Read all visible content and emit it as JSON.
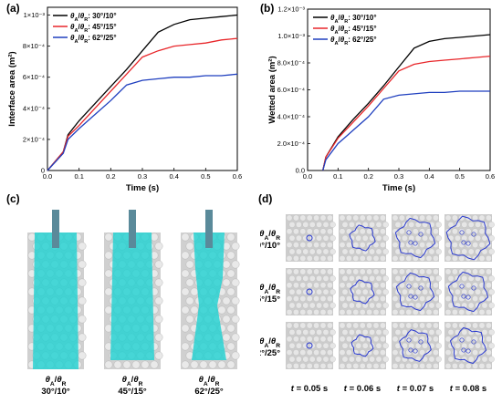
{
  "panels": {
    "a": {
      "label": "(a)"
    },
    "b": {
      "label": "(b)"
    },
    "c": {
      "label": "(c)"
    },
    "d": {
      "label": "(d)"
    }
  },
  "chart_data": [
    {
      "type": "line",
      "panel": "a",
      "ylabel": "Interface area (m²)",
      "xlabel": "Time (s)",
      "xlim": [
        0,
        0.6
      ],
      "ylim": [
        0,
        0.00105
      ],
      "xticks": [
        "0.0",
        "0.1",
        "0.2",
        "0.3",
        "0.4",
        "0.5",
        "0.6"
      ],
      "yticks": [
        "0",
        "2×10⁻⁴",
        "4×10⁻⁴",
        "6×10⁻⁴",
        "8×10⁻⁴",
        "1×10⁻³"
      ],
      "legend_position": "top-left",
      "grid": false,
      "series": [
        {
          "name": "θA/θR: 30°/10°",
          "color": "#000000",
          "x": [
            0,
            0.05,
            0.065,
            0.1,
            0.15,
            0.2,
            0.25,
            0.3,
            0.35,
            0.4,
            0.45,
            0.5,
            0.55,
            0.6
          ],
          "y": [
            0,
            0.00012,
            0.00023,
            0.00032,
            0.00043,
            0.00054,
            0.00065,
            0.00077,
            0.00089,
            0.00094,
            0.00097,
            0.00098,
            0.00099,
            0.001
          ]
        },
        {
          "name": "θA/θR: 45°/15°",
          "color": "#e8262a",
          "x": [
            0,
            0.05,
            0.065,
            0.1,
            0.15,
            0.2,
            0.25,
            0.3,
            0.35,
            0.4,
            0.45,
            0.5,
            0.55,
            0.6
          ],
          "y": [
            0,
            0.00012,
            0.00022,
            0.00029,
            0.0004,
            0.00051,
            0.00062,
            0.00073,
            0.00077,
            0.0008,
            0.00081,
            0.00082,
            0.00084,
            0.00085
          ]
        },
        {
          "name": "θA/θR: 62°/25°",
          "color": "#1f3fbf",
          "x": [
            0,
            0.05,
            0.065,
            0.1,
            0.15,
            0.2,
            0.25,
            0.3,
            0.35,
            0.4,
            0.45,
            0.5,
            0.55,
            0.6
          ],
          "y": [
            0,
            0.00011,
            0.0002,
            0.00027,
            0.00036,
            0.00045,
            0.00055,
            0.00058,
            0.00059,
            0.0006,
            0.0006,
            0.00061,
            0.00061,
            0.00062
          ]
        }
      ]
    },
    {
      "type": "line",
      "panel": "b",
      "ylabel": "Wetted area (m²)",
      "xlabel": "Time (s)",
      "xlim": [
        0,
        0.6
      ],
      "ylim": [
        0,
        0.0012
      ],
      "xticks": [
        "0.0",
        "0.1",
        "0.2",
        "0.3",
        "0.4",
        "0.5",
        "0.6"
      ],
      "yticks": [
        "0.0",
        "2.0×10⁻⁴",
        "4.0×10⁻⁴",
        "6.0×10⁻⁴",
        "8.0×10⁻⁴",
        "1.0×10⁻³",
        "1.2×10⁻³"
      ],
      "legend_position": "top-left",
      "grid": false,
      "series": [
        {
          "name": "θA/θR: 30°/10°",
          "color": "#000000",
          "x": [
            0.05,
            0.06,
            0.1,
            0.15,
            0.2,
            0.25,
            0.3,
            0.35,
            0.4,
            0.45,
            0.5,
            0.55,
            0.6
          ],
          "y": [
            0,
            0.0001,
            0.00025,
            0.00038,
            0.0005,
            0.00063,
            0.00077,
            0.00091,
            0.00096,
            0.00098,
            0.00099,
            0.001,
            0.00101
          ]
        },
        {
          "name": "θA/θR: 45°/15°",
          "color": "#e8262a",
          "x": [
            0.05,
            0.06,
            0.1,
            0.15,
            0.2,
            0.25,
            0.3,
            0.35,
            0.4,
            0.45,
            0.5,
            0.55,
            0.6
          ],
          "y": [
            0,
            0.0001,
            0.00024,
            0.00036,
            0.00048,
            0.00061,
            0.00074,
            0.00079,
            0.00081,
            0.00082,
            0.00083,
            0.00084,
            0.00085
          ]
        },
        {
          "name": "θA/θR: 62°/25°",
          "color": "#1f3fbf",
          "x": [
            0.05,
            0.06,
            0.1,
            0.15,
            0.2,
            0.25,
            0.3,
            0.35,
            0.4,
            0.45,
            0.5,
            0.55,
            0.6
          ],
          "y": [
            0,
            8e-05,
            0.0002,
            0.0003,
            0.0004,
            0.00053,
            0.00056,
            0.00057,
            0.00058,
            0.00058,
            0.00059,
            0.00059,
            0.00059
          ]
        }
      ]
    }
  ],
  "panel_c": {
    "captions": [
      {
        "ratio": "θA/θR",
        "angles": "30°/10°"
      },
      {
        "ratio": "θA/θR",
        "angles": "45°/15°"
      },
      {
        "ratio": "θA/θR",
        "angles": "62°/25°"
      }
    ],
    "colors": {
      "liquid": "#22d2d2",
      "bead": "#d0d0d0",
      "nozzle": "#5a8a9a"
    }
  },
  "panel_d": {
    "row_labels": [
      {
        "ratio": "θA/θR",
        "angles": "30°/10°"
      },
      {
        "ratio": "θA/θR",
        "angles": "45°/15°"
      },
      {
        "ratio": "θA/θR",
        "angles": "62°/25°"
      }
    ],
    "time_labels": [
      "t = 0.05 s",
      "t = 0.06 s",
      "t = 0.07 s",
      "t = 0.08 s"
    ],
    "colors": {
      "contour": "#2a3ad0",
      "bead": "#cccccc"
    }
  }
}
